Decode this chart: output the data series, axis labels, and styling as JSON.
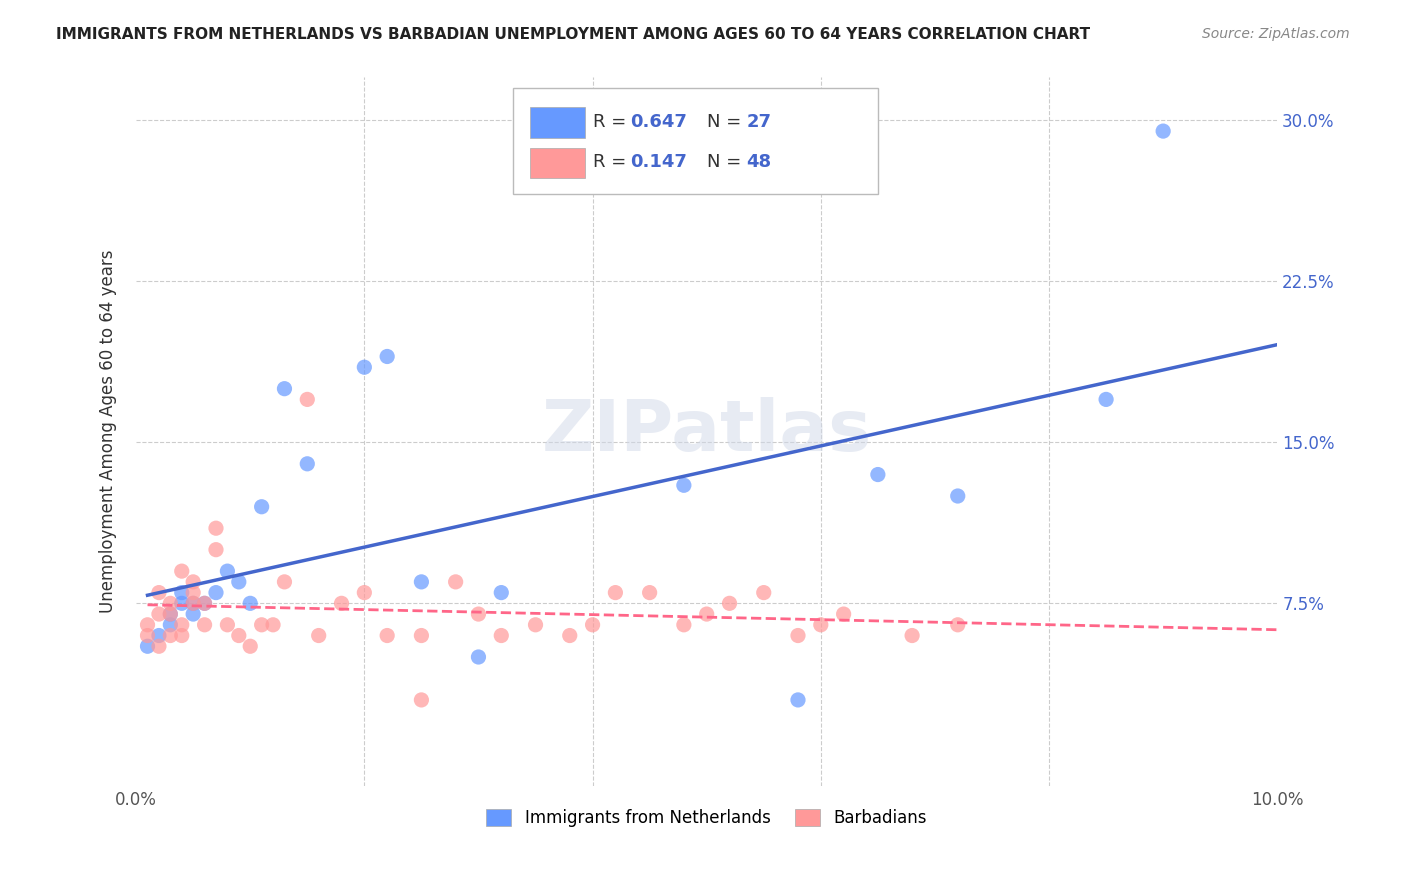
{
  "title": "IMMIGRANTS FROM NETHERLANDS VS BARBADIAN UNEMPLOYMENT AMONG AGES 60 TO 64 YEARS CORRELATION CHART",
  "source": "Source: ZipAtlas.com",
  "ylabel": "Unemployment Among Ages 60 to 64 years",
  "ytick_labels": [
    "",
    "7.5%",
    "15.0%",
    "22.5%",
    "30.0%"
  ],
  "ytick_values": [
    0,
    0.075,
    0.15,
    0.225,
    0.3
  ],
  "xlim": [
    0,
    0.1
  ],
  "ylim": [
    -0.01,
    0.32
  ],
  "legend1_R": "0.647",
  "legend1_N": "27",
  "legend2_R": "0.147",
  "legend2_N": "48",
  "color_blue": "#6699ff",
  "color_pink": "#ff9999",
  "color_blue_line": "#4466cc",
  "color_pink_line": "#ff6688",
  "watermark": "ZIPatlas",
  "blue_scatter_x": [
    0.001,
    0.002,
    0.003,
    0.003,
    0.004,
    0.004,
    0.005,
    0.005,
    0.006,
    0.007,
    0.008,
    0.009,
    0.01,
    0.011,
    0.013,
    0.015,
    0.02,
    0.022,
    0.025,
    0.03,
    0.032,
    0.048,
    0.058,
    0.065,
    0.072,
    0.085,
    0.09
  ],
  "blue_scatter_y": [
    0.055,
    0.06,
    0.065,
    0.07,
    0.075,
    0.08,
    0.07,
    0.075,
    0.075,
    0.08,
    0.09,
    0.085,
    0.075,
    0.12,
    0.175,
    0.14,
    0.185,
    0.19,
    0.085,
    0.05,
    0.08,
    0.13,
    0.03,
    0.135,
    0.125,
    0.17,
    0.295
  ],
  "pink_scatter_x": [
    0.001,
    0.001,
    0.002,
    0.002,
    0.002,
    0.003,
    0.003,
    0.003,
    0.004,
    0.004,
    0.004,
    0.005,
    0.005,
    0.005,
    0.006,
    0.006,
    0.007,
    0.007,
    0.008,
    0.009,
    0.01,
    0.011,
    0.012,
    0.013,
    0.015,
    0.016,
    0.018,
    0.02,
    0.022,
    0.025,
    0.025,
    0.028,
    0.03,
    0.032,
    0.035,
    0.038,
    0.04,
    0.042,
    0.045,
    0.048,
    0.05,
    0.052,
    0.055,
    0.058,
    0.06,
    0.062,
    0.068,
    0.072
  ],
  "pink_scatter_y": [
    0.06,
    0.065,
    0.055,
    0.07,
    0.08,
    0.06,
    0.07,
    0.075,
    0.06,
    0.065,
    0.09,
    0.075,
    0.08,
    0.085,
    0.065,
    0.075,
    0.1,
    0.11,
    0.065,
    0.06,
    0.055,
    0.065,
    0.065,
    0.085,
    0.17,
    0.06,
    0.075,
    0.08,
    0.06,
    0.03,
    0.06,
    0.085,
    0.07,
    0.06,
    0.065,
    0.06,
    0.065,
    0.08,
    0.08,
    0.065,
    0.07,
    0.075,
    0.08,
    0.06,
    0.065,
    0.07,
    0.06,
    0.065
  ]
}
